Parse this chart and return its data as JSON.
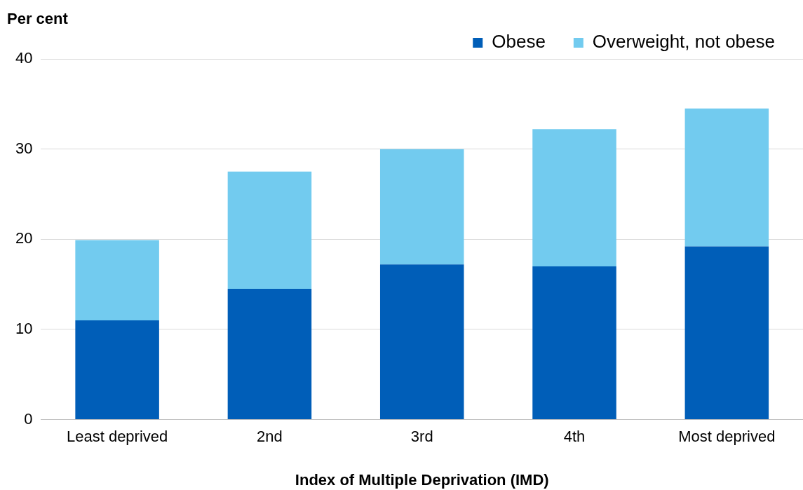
{
  "chart_data": {
    "type": "bar",
    "stacked": true,
    "ylabel": "Per cent",
    "xlabel": "Index of Multiple Deprivation (IMD)",
    "categories": [
      "Least deprived",
      "2nd",
      "3rd",
      "4th",
      "Most deprived"
    ],
    "series": [
      {
        "name": "Obese",
        "color": "#005eb8",
        "values": [
          11.0,
          14.5,
          17.2,
          17.0,
          19.2
        ]
      },
      {
        "name": "Overweight, not obese",
        "color": "#72cbef",
        "values": [
          8.9,
          13.0,
          12.8,
          15.2,
          15.3
        ]
      }
    ],
    "ylim": [
      0,
      40
    ],
    "yticks": [
      0,
      10,
      20,
      30,
      40
    ],
    "grid": "y",
    "legend": "top right"
  }
}
